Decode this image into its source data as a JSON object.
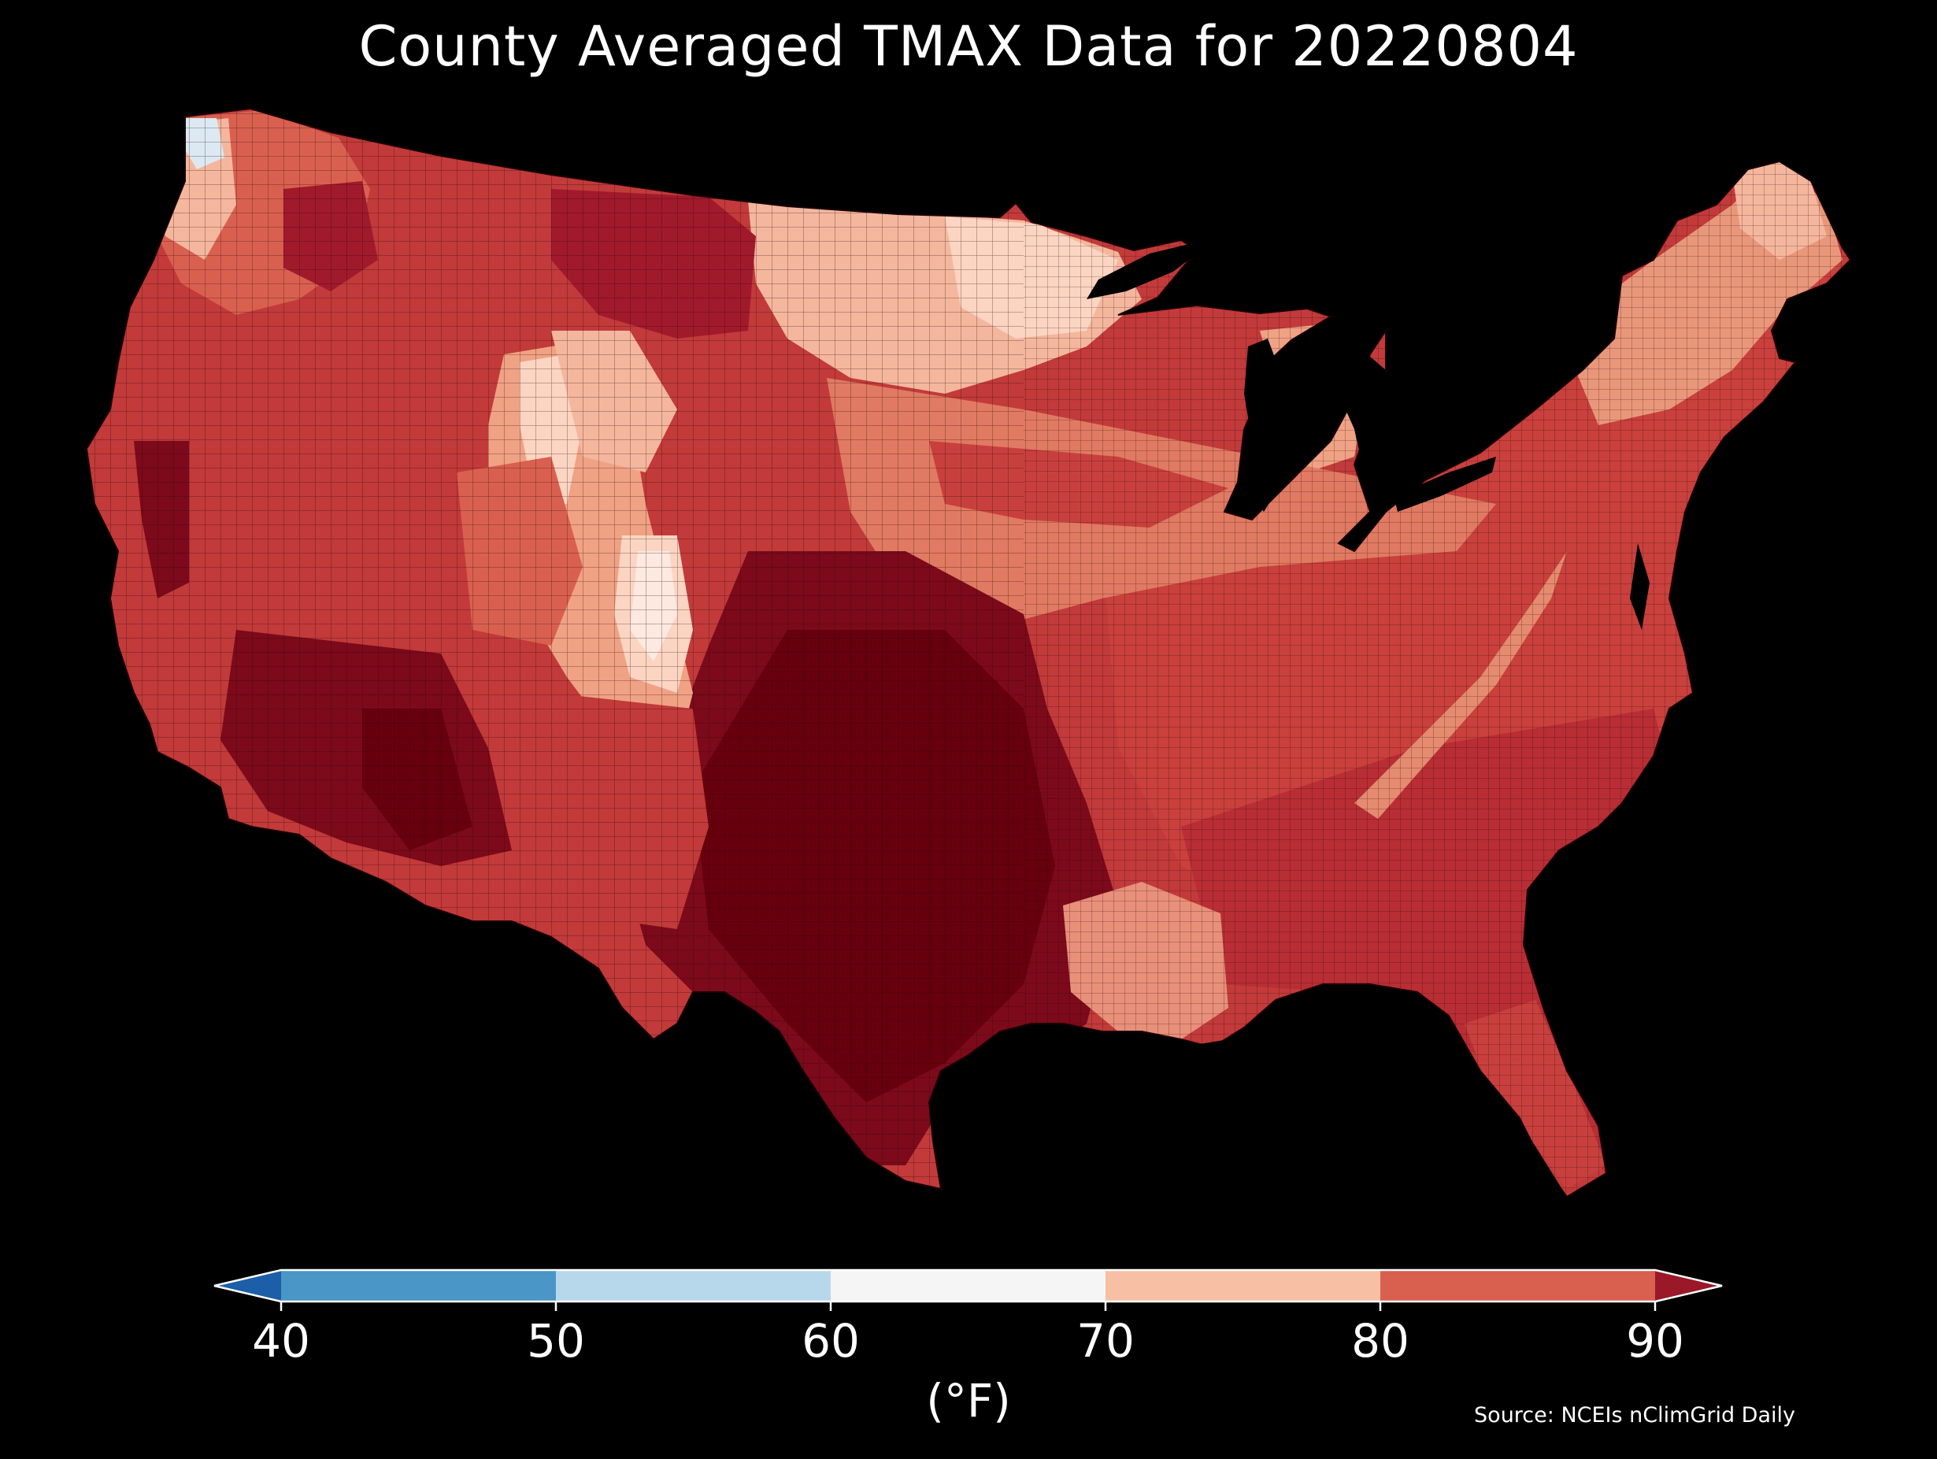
{
  "title": "County Averaged TMAX Data for 20220804",
  "colorbar": {
    "unit": "(°F)",
    "ticks": [
      "40",
      "50",
      "60",
      "70",
      "80",
      "90"
    ],
    "bins": [
      {
        "from": 40,
        "to": 50,
        "color": "#4a96c6"
      },
      {
        "from": 50,
        "to": 60,
        "color": "#b7d8ea"
      },
      {
        "from": 60,
        "to": 70,
        "color": "#f5f5f5"
      },
      {
        "from": 70,
        "to": 80,
        "color": "#f7c0a4"
      },
      {
        "from": 80,
        "to": 90,
        "color": "#d9604f"
      }
    ],
    "under_color": "#1c5ea8",
    "over_color": "#9b1829",
    "extend": "both"
  },
  "source": "Source: NCEIs nClimGrid Daily",
  "palette": {
    "hot_max": "#67000d",
    "very_hot": "#a11a2c",
    "hot": "#c23a3a",
    "warm": "#d9604f",
    "mild": "#f0a284",
    "cool": "#fbd5c2",
    "near70": "#fce9df",
    "cold": "#dce9f2",
    "background": "#000000"
  }
}
